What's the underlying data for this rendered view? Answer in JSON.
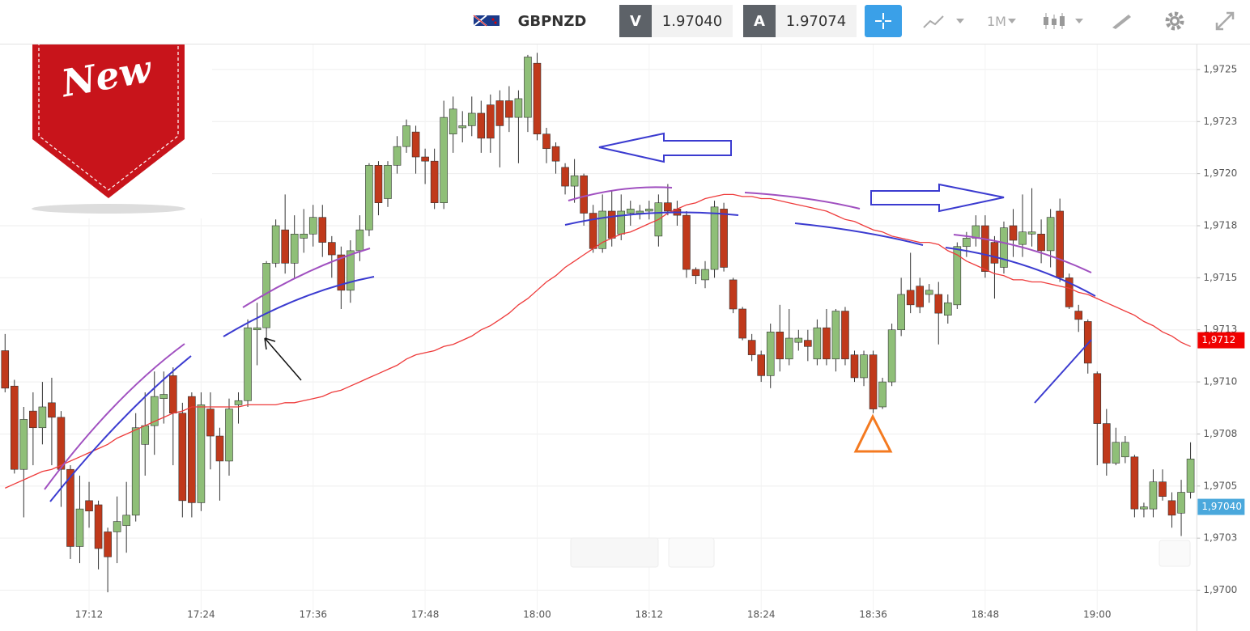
{
  "badge": "New",
  "toolbar": {
    "symbol": "GBPNZD",
    "bid_label": "V",
    "bid": "1.97040",
    "ask_label": "A",
    "ask": "1.97074",
    "timeframe": "1M"
  },
  "chart_data": {
    "type": "candlestick",
    "categories": [
      null,
      null,
      null,
      null,
      null,
      null,
      null,
      null,
      null,
      "17:12",
      null,
      null,
      null,
      null,
      null,
      null,
      null,
      null,
      null,
      null,
      null,
      "17:24",
      null,
      null,
      null,
      null,
      null,
      null,
      null,
      null,
      null,
      null,
      null,
      "17:36",
      null,
      null,
      null,
      null,
      null,
      null,
      null,
      null,
      null,
      null,
      null,
      "17:48",
      null,
      null,
      null,
      null,
      null,
      null,
      null,
      null,
      null,
      null,
      null,
      "18:00",
      null,
      null,
      null,
      null,
      null,
      null,
      null,
      null,
      null,
      null,
      null,
      "18:12",
      null,
      null,
      null,
      null,
      null,
      null,
      null,
      null,
      null,
      null,
      null,
      "18:24",
      null,
      null,
      null,
      null,
      null,
      null,
      null,
      null,
      null,
      null,
      null,
      "18:36",
      null,
      null,
      null,
      null,
      null,
      null,
      null,
      null,
      null,
      null,
      null,
      "18:48",
      null,
      null,
      null,
      null,
      null,
      null,
      null,
      null,
      null,
      null,
      null,
      "19:00",
      null,
      null,
      null,
      null,
      null,
      null,
      null,
      null,
      null,
      null
    ],
    "open": [
      1.97115,
      1.97098,
      1.97058,
      1.97086,
      1.97078,
      1.9709,
      1.97083,
      1.97058,
      1.97021,
      1.97043,
      1.97041,
      1.97028,
      1.97028,
      1.97031,
      1.97036,
      1.9707,
      1.97079,
      1.97092,
      1.97103,
      1.97085,
      1.97093,
      1.97042,
      1.97087,
      1.97074,
      1.97062,
      1.97089,
      1.97091,
      1.97125,
      1.97126,
      1.97157,
      1.97173,
      1.97157,
      1.97169,
      1.97171,
      1.97179,
      1.97167,
      1.97161,
      1.97144,
      1.97163,
      1.97173,
      1.97204,
      1.97188,
      1.97204,
      1.97213,
      1.9722,
      1.97208,
      1.97206,
      1.97186,
      1.97219,
      1.97222,
      1.97223,
      1.97229,
      1.97233,
      1.97235,
      1.97235,
      1.97227,
      1.97227,
      1.97253,
      1.97219,
      1.97213,
      1.97203,
      1.97194,
      1.97199,
      1.97181,
      1.97164,
      1.97182,
      1.97171,
      1.97181,
      1.97181,
      1.97182,
      1.9717,
      1.97186,
      1.97183,
      1.9718,
      1.97154,
      1.97149,
      1.97154,
      1.97183,
      1.97149,
      1.97135,
      1.9712,
      1.97113,
      1.97103,
      1.97124,
      1.97111,
      1.97119,
      1.9712,
      1.97111,
      1.97126,
      1.97111,
      1.97134,
      1.97113,
      1.97102,
      1.97113,
      1.97088,
      1.971,
      1.97125,
      1.97144,
      1.97146,
      1.97142,
      1.97142,
      1.97132,
      1.97137,
      1.97165,
      1.97169,
      1.97175,
      1.97167,
      1.97155,
      1.97175,
      1.97166,
      1.97171,
      1.97171,
      1.97163,
      1.97182,
      1.9715,
      1.97134,
      1.97129,
      1.97104,
      1.9708,
      1.97061,
      1.97064,
      1.97064,
      1.97039,
      1.97039,
      1.97052,
      1.97043,
      1.97037,
      1.97047
    ],
    "high": [
      1.97123,
      1.97101,
      1.97088,
      1.97095,
      1.971,
      1.97102,
      1.97086,
      1.9706,
      1.97055,
      1.97052,
      1.97043,
      1.9703,
      1.97045,
      1.97052,
      1.97085,
      1.97095,
      1.97105,
      1.97105,
      1.97107,
      1.9709,
      1.97095,
      1.97095,
      1.97095,
      1.97078,
      1.97092,
      1.97095,
      1.9713,
      1.97138,
      1.97158,
      1.97178,
      1.9719,
      1.9718,
      1.97183,
      1.97185,
      1.97185,
      1.9717,
      1.97165,
      1.97168,
      1.9718,
      1.97205,
      1.97206,
      1.97206,
      1.97218,
      1.97226,
      1.97223,
      1.97212,
      1.97212,
      1.97235,
      1.97237,
      1.9723,
      1.97237,
      1.97235,
      1.97238,
      1.9724,
      1.97242,
      1.9724,
      1.97257,
      1.97258,
      1.97222,
      1.97215,
      1.97205,
      1.97207,
      1.972,
      1.97185,
      1.9719,
      1.97192,
      1.9719,
      1.97187,
      1.97185,
      1.97187,
      1.9719,
      1.97195,
      1.97187,
      1.97182,
      1.97155,
      1.97158,
      1.97187,
      1.97186,
      1.9715,
      1.97136,
      1.97123,
      1.97115,
      1.97128,
      1.97137,
      1.97135,
      1.97125,
      1.97125,
      1.9713,
      1.97135,
      1.97135,
      1.97136,
      1.97115,
      1.97115,
      1.97115,
      1.97102,
      1.97128,
      1.9715,
      1.97162,
      1.9715,
      1.97147,
      1.97148,
      1.97142,
      1.97167,
      1.97172,
      1.9718,
      1.9718,
      1.9717,
      1.97177,
      1.97183,
      1.9719,
      1.97193,
      1.97178,
      1.97183,
      1.97188,
      1.97152,
      1.97137,
      1.9713,
      1.97105,
      1.97087,
      1.97078,
      1.97074,
      1.97065,
      1.97042,
      1.97058,
      1.97058,
      1.97047,
      1.97053,
      1.97071
    ],
    "low": [
      1.97095,
      1.97056,
      1.97035,
      1.9706,
      1.9707,
      1.9706,
      1.9704,
      1.97015,
      1.97013,
      1.9703,
      1.9701,
      1.96999,
      1.97013,
      1.97018,
      1.97033,
      1.97055,
      1.97065,
      1.9708,
      1.9706,
      1.97035,
      1.97035,
      1.97038,
      1.97058,
      1.97043,
      1.97055,
      1.9708,
      1.97088,
      1.97108,
      1.9712,
      1.97155,
      1.97152,
      1.9715,
      1.97162,
      1.97165,
      1.9716,
      1.9715,
      1.97135,
      1.97138,
      1.97158,
      1.9717,
      1.9718,
      1.97184,
      1.972,
      1.9721,
      1.972,
      1.97195,
      1.97183,
      1.97183,
      1.9721,
      1.97215,
      1.97218,
      1.9721,
      1.9721,
      1.97203,
      1.9722,
      1.97205,
      1.9722,
      1.97216,
      1.97205,
      1.972,
      1.9719,
      1.97186,
      1.97175,
      1.97162,
      1.97162,
      1.97165,
      1.97168,
      1.97175,
      1.97178,
      1.97178,
      1.97165,
      1.9718,
      1.97175,
      1.9715,
      1.97147,
      1.97145,
      1.9715,
      1.97153,
      1.97133,
      1.9712,
      1.9711,
      1.971,
      1.97097,
      1.97105,
      1.97108,
      1.97115,
      1.9711,
      1.97108,
      1.97108,
      1.97105,
      1.97108,
      1.971,
      1.97098,
      1.97085,
      1.97087,
      1.97098,
      1.97122,
      1.97133,
      1.97133,
      1.97138,
      1.97118,
      1.97128,
      1.97135,
      1.9716,
      1.97165,
      1.9715,
      1.9714,
      1.97152,
      1.9716,
      1.9716,
      1.97165,
      1.97157,
      1.97155,
      1.97148,
      1.97135,
      1.97124,
      1.97104,
      1.9706,
      1.97055,
      1.9706,
      1.97061,
      1.97035,
      1.97035,
      1.97035,
      1.97043,
      1.9703,
      1.97026,
      1.97044
    ],
    "close": [
      1.97097,
      1.97058,
      1.97082,
      1.97078,
      1.97088,
      1.97083,
      1.97058,
      1.97021,
      1.97039,
      1.97038,
      1.9702,
      1.97016,
      1.97033,
      1.97036,
      1.97078,
      1.97079,
      1.97093,
      1.97094,
      1.97085,
      1.97043,
      1.97042,
      1.97089,
      1.97074,
      1.97062,
      1.97087,
      1.97091,
      1.97126,
      1.97126,
      1.97157,
      1.97175,
      1.97157,
      1.97171,
      1.97171,
      1.97179,
      1.97167,
      1.97161,
      1.97144,
      1.97163,
      1.97173,
      1.97204,
      1.97186,
      1.97204,
      1.97213,
      1.97223,
      1.97208,
      1.97206,
      1.97186,
      1.97227,
      1.97231,
      1.97223,
      1.97229,
      1.97217,
      1.97217,
      1.97223,
      1.97227,
      1.97236,
      1.97256,
      1.97219,
      1.97212,
      1.97206,
      1.97194,
      1.97199,
      1.97181,
      1.97164,
      1.97182,
      1.97169,
      1.97182,
      1.97183,
      1.97182,
      1.97183,
      1.97186,
      1.97182,
      1.9718,
      1.97154,
      1.97151,
      1.97154,
      1.97184,
      1.97155,
      1.97135,
      1.97121,
      1.97113,
      1.97103,
      1.97124,
      1.97111,
      1.97121,
      1.97121,
      1.97117,
      1.97126,
      1.97111,
      1.97134,
      1.97111,
      1.97102,
      1.97113,
      1.97087,
      1.971,
      1.97125,
      1.97142,
      1.97137,
      1.97136,
      1.97144,
      1.97133,
      1.97138,
      1.97165,
      1.97169,
      1.97175,
      1.97153,
      1.97157,
      1.97174,
      1.97168,
      1.97172,
      1.97172,
      1.97163,
      1.97179,
      1.9715,
      1.97136,
      1.9713,
      1.97109,
      1.9708,
      1.97061,
      1.97071,
      1.97071,
      1.97039,
      1.9704,
      1.97052,
      1.97045,
      1.97036,
      1.97047,
      1.97063
    ],
    "up_color": "#8fbf78",
    "down_color": "#c0391b",
    "ma": {
      "color": "#ee3b3b",
      "values": [
        1.97049,
        1.97051,
        1.97053,
        1.97055,
        1.97057,
        1.97058,
        1.9706,
        1.97062,
        1.97064,
        1.97066,
        1.97068,
        1.9707,
        1.97073,
        1.97075,
        1.97077,
        1.97079,
        1.97081,
        1.97083,
        1.97085,
        1.97086,
        1.97088,
        1.97088,
        1.97088,
        1.97088,
        1.97088,
        1.97088,
        1.97089,
        1.97089,
        1.97089,
        1.97089,
        1.9709,
        1.9709,
        1.97091,
        1.97092,
        1.97093,
        1.97095,
        1.97096,
        1.97098,
        1.971,
        1.97102,
        1.97104,
        1.97106,
        1.97108,
        1.97111,
        1.97113,
        1.97114,
        1.97115,
        1.97117,
        1.97118,
        1.9712,
        1.97122,
        1.97125,
        1.97127,
        1.9713,
        1.97133,
        1.97137,
        1.9714,
        1.97144,
        1.97148,
        1.97151,
        1.97155,
        1.97158,
        1.97161,
        1.97164,
        1.97167,
        1.97169,
        1.97171,
        1.97172,
        1.97174,
        1.97176,
        1.97178,
        1.97181,
        1.97183,
        1.97185,
        1.97186,
        1.97188,
        1.97189,
        1.9719,
        1.9719,
        1.97189,
        1.97189,
        1.97188,
        1.97188,
        1.97187,
        1.97186,
        1.97185,
        1.97184,
        1.97183,
        1.97182,
        1.9718,
        1.97178,
        1.97177,
        1.97175,
        1.97173,
        1.97172,
        1.9717,
        1.97169,
        1.97168,
        1.97167,
        1.97167,
        1.97166,
        1.97163,
        1.97161,
        1.97158,
        1.97156,
        1.97154,
        1.97152,
        1.97151,
        1.97149,
        1.97149,
        1.97148,
        1.97148,
        1.97147,
        1.97146,
        1.97145,
        1.97143,
        1.97142,
        1.9714,
        1.97138,
        1.97136,
        1.97134,
        1.97132,
        1.97129,
        1.97127,
        1.97124,
        1.97122,
        1.97119,
        1.97117
      ]
    },
    "ylim": [
      1.96994,
      1.97262
    ],
    "yticks": [
      {
        "value": 1.9725,
        "label": "1,9725"
      },
      {
        "value": 1.97225,
        "label": "1,9723"
      },
      {
        "value": 1.972,
        "label": "1,9720"
      },
      {
        "value": 1.97175,
        "label": "1,9718"
      },
      {
        "value": 1.9715,
        "label": "1,9715"
      },
      {
        "value": 1.97125,
        "label": "1,9713"
      },
      {
        "value": 1.971,
        "label": "1,9710"
      },
      {
        "value": 1.97075,
        "label": "1,9708"
      },
      {
        "value": 1.9705,
        "label": "1,9705"
      },
      {
        "value": 1.97025,
        "label": "1,9703"
      },
      {
        "value": 1.97,
        "label": "1,9700"
      }
    ],
    "grid": true,
    "price_tags": [
      {
        "value": 1.9712,
        "label": "1,9712",
        "color": "#f00000"
      },
      {
        "value": 1.9704,
        "label": "1,97040",
        "color": "#4aa8dc"
      }
    ]
  }
}
